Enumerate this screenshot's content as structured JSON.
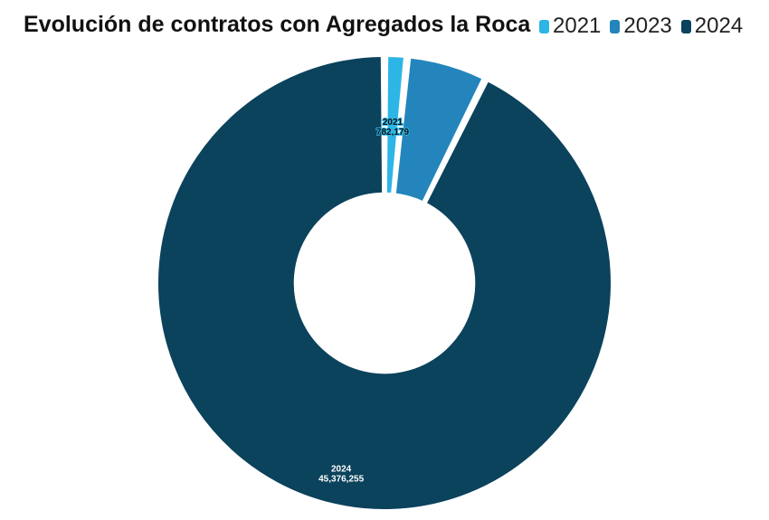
{
  "chart_data": {
    "type": "pie",
    "title": "Evolución de contratos con Agregados la Roca",
    "inner_radius_fraction": 0.39,
    "legend_placement": "top-right",
    "slices": [
      {
        "name": "2021",
        "value": 782179,
        "color": "#2db5e6",
        "label_year": "2021",
        "label_value": "782,179"
      },
      {
        "name": "2023",
        "value": 2800000,
        "color": "#2385bb",
        "label_year": "",
        "label_value": ""
      },
      {
        "name": "2024",
        "value": 45376255,
        "color": "#0b425c",
        "label_year": "2024",
        "label_value": "45,376,255"
      }
    ]
  }
}
